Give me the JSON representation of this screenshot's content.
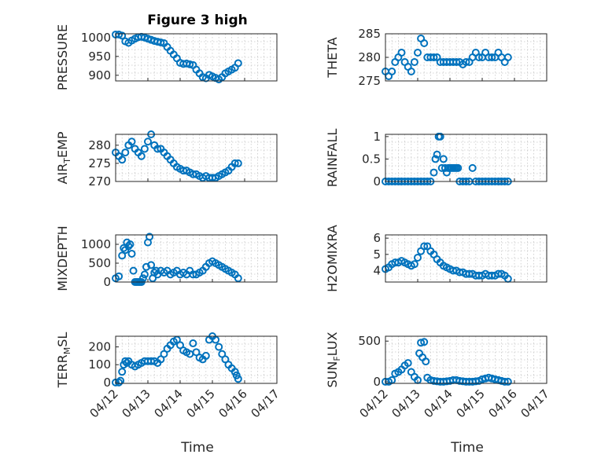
{
  "figure": {
    "title": "Figure 3 high",
    "xlabel": "Time",
    "marker_color": "#0072BD",
    "x_ticks": [
      "04/12",
      "04/13",
      "04/14",
      "04/15",
      "04/16",
      "04/17"
    ]
  },
  "chart_data": [
    {
      "type": "scatter",
      "ylabel": "PRESSURE",
      "xlim": [
        0,
        5
      ],
      "ylim": [
        885,
        1010
      ],
      "y_ticks": [
        "1000",
        "950",
        "900"
      ],
      "x": [
        0.0,
        0.1,
        0.2,
        0.3,
        0.4,
        0.5,
        0.6,
        0.7,
        0.8,
        0.9,
        1.0,
        1.1,
        1.2,
        1.3,
        1.4,
        1.5,
        1.6,
        1.7,
        1.8,
        1.9,
        2.0,
        2.1,
        2.2,
        2.3,
        2.4,
        2.5,
        2.6,
        2.7,
        2.8,
        2.9,
        3.0,
        3.1,
        3.2,
        3.3,
        3.4,
        3.5,
        3.6,
        3.7,
        3.8
      ],
      "y": [
        1008,
        1008,
        1005,
        990,
        986,
        992,
        997,
        1001,
        1002,
        1000,
        997,
        994,
        991,
        989,
        987,
        985,
        975,
        965,
        955,
        945,
        933,
        930,
        931,
        929,
        927,
        915,
        905,
        895,
        892,
        901,
        897,
        893,
        889,
        895,
        905,
        910,
        915,
        920,
        932
      ]
    },
    {
      "type": "scatter",
      "ylabel": "THETA",
      "xlim": [
        0,
        5
      ],
      "ylim": [
        275,
        285
      ],
      "y_ticks": [
        "285",
        "280",
        "275"
      ],
      "x": [
        0.0,
        0.1,
        0.2,
        0.3,
        0.4,
        0.5,
        0.6,
        0.7,
        0.8,
        0.9,
        1.0,
        1.1,
        1.2,
        1.3,
        1.4,
        1.5,
        1.6,
        1.7,
        1.8,
        1.9,
        2.0,
        2.1,
        2.2,
        2.3,
        2.4,
        2.5,
        2.6,
        2.7,
        2.8,
        2.9,
        3.0,
        3.1,
        3.2,
        3.3,
        3.4,
        3.5,
        3.6,
        3.7,
        3.8
      ],
      "y": [
        277,
        276,
        277,
        279,
        280,
        281,
        279,
        278,
        277,
        279,
        281,
        284,
        283,
        280,
        280,
        280,
        280,
        279,
        279,
        279,
        279,
        279,
        279,
        279,
        278.5,
        279,
        279,
        280,
        281,
        280,
        280,
        281,
        280,
        280,
        280,
        281,
        280,
        279,
        280
      ]
    },
    {
      "type": "scatter",
      "ylabel": "AIR_TEMP",
      "xlim": [
        0,
        5
      ],
      "ylim": [
        270,
        283
      ],
      "y_ticks": [
        "280",
        "275",
        "270"
      ],
      "x": [
        0.0,
        0.1,
        0.2,
        0.3,
        0.4,
        0.5,
        0.6,
        0.7,
        0.8,
        0.9,
        1.0,
        1.1,
        1.2,
        1.3,
        1.4,
        1.5,
        1.6,
        1.7,
        1.8,
        1.9,
        2.0,
        2.1,
        2.2,
        2.3,
        2.4,
        2.5,
        2.6,
        2.7,
        2.8,
        2.9,
        3.0,
        3.1,
        3.2,
        3.3,
        3.4,
        3.5,
        3.6,
        3.7,
        3.8
      ],
      "y": [
        278,
        277,
        276,
        278,
        280,
        281,
        279,
        278,
        277,
        279,
        281,
        283,
        280,
        279,
        279,
        278,
        277,
        276,
        275,
        274,
        273.5,
        273,
        273,
        272.5,
        272,
        272,
        271.5,
        271,
        271.5,
        271,
        271,
        271,
        271.5,
        272,
        272.5,
        273,
        274,
        275,
        275
      ]
    },
    {
      "type": "scatter",
      "ylabel": "RAINFALL",
      "xlim": [
        0,
        5
      ],
      "ylim": [
        0,
        1.05
      ],
      "y_ticks": [
        "1",
        "0.5",
        "0"
      ],
      "x": [
        0.0,
        0.1,
        0.2,
        0.3,
        0.4,
        0.5,
        0.6,
        0.7,
        0.8,
        0.9,
        1.0,
        1.1,
        1.2,
        1.3,
        1.4,
        1.5,
        1.55,
        1.6,
        1.65,
        1.7,
        1.75,
        1.8,
        1.85,
        1.9,
        1.95,
        2.0,
        2.05,
        2.1,
        2.15,
        2.2,
        2.25,
        2.3,
        2.4,
        2.5,
        2.6,
        2.7,
        2.8,
        2.9,
        3.0,
        3.1,
        3.2,
        3.3,
        3.4,
        3.5,
        3.6,
        3.7,
        3.8
      ],
      "y": [
        0,
        0,
        0,
        0,
        0,
        0,
        0,
        0,
        0,
        0,
        0,
        0,
        0,
        0,
        0,
        0.2,
        0.5,
        0.6,
        1,
        1,
        0.3,
        0.5,
        0.3,
        0.2,
        0.3,
        0.3,
        0.3,
        0.3,
        0.3,
        0.3,
        0.3,
        0,
        0,
        0,
        0,
        0.3,
        0,
        0,
        0,
        0,
        0,
        0,
        0,
        0,
        0,
        0,
        0
      ]
    },
    {
      "type": "scatter",
      "ylabel": "MIXDEPTH",
      "xlim": [
        0,
        5
      ],
      "ylim": [
        0,
        1250
      ],
      "y_ticks": [
        "1000",
        "500",
        "0"
      ],
      "x": [
        0.0,
        0.1,
        0.2,
        0.25,
        0.3,
        0.35,
        0.4,
        0.45,
        0.5,
        0.55,
        0.6,
        0.65,
        0.7,
        0.75,
        0.8,
        0.85,
        0.9,
        0.95,
        1.0,
        1.05,
        1.1,
        1.15,
        1.2,
        1.25,
        1.3,
        1.4,
        1.5,
        1.6,
        1.7,
        1.8,
        1.9,
        2.0,
        2.1,
        2.2,
        2.3,
        2.4,
        2.5,
        2.6,
        2.7,
        2.8,
        2.9,
        3.0,
        3.1,
        3.2,
        3.3,
        3.4,
        3.5,
        3.6,
        3.7,
        3.8
      ],
      "y": [
        100,
        150,
        700,
        900,
        850,
        1050,
        950,
        1000,
        750,
        300,
        0,
        0,
        0,
        0,
        0,
        100,
        200,
        400,
        1050,
        1200,
        450,
        100,
        250,
        300,
        200,
        300,
        250,
        300,
        200,
        250,
        300,
        200,
        250,
        200,
        300,
        200,
        200,
        250,
        300,
        400,
        500,
        550,
        500,
        450,
        400,
        350,
        300,
        250,
        200,
        100
      ]
    },
    {
      "type": "scatter",
      "ylabel": "H2OMIXRA",
      "xlim": [
        0,
        5
      ],
      "ylim": [
        3.3,
        6.2
      ],
      "y_ticks": [
        "6",
        "5",
        "4"
      ],
      "x": [
        0.0,
        0.1,
        0.2,
        0.3,
        0.4,
        0.5,
        0.6,
        0.7,
        0.8,
        0.9,
        1.0,
        1.1,
        1.2,
        1.3,
        1.4,
        1.5,
        1.6,
        1.7,
        1.8,
        1.9,
        2.0,
        2.1,
        2.2,
        2.3,
        2.4,
        2.5,
        2.6,
        2.7,
        2.8,
        2.9,
        3.0,
        3.1,
        3.2,
        3.3,
        3.4,
        3.5,
        3.6,
        3.7,
        3.8
      ],
      "y": [
        4.1,
        4.2,
        4.4,
        4.5,
        4.5,
        4.6,
        4.5,
        4.4,
        4.3,
        4.4,
        4.8,
        5.2,
        5.5,
        5.5,
        5.2,
        5.0,
        4.7,
        4.5,
        4.3,
        4.2,
        4.1,
        4.0,
        4.0,
        3.9,
        3.9,
        3.8,
        3.8,
        3.8,
        3.7,
        3.7,
        3.7,
        3.8,
        3.7,
        3.7,
        3.7,
        3.8,
        3.8,
        3.7,
        3.5
      ]
    },
    {
      "type": "scatter",
      "ylabel": "TERR_MSL",
      "xlim": [
        0,
        5
      ],
      "ylim": [
        -5,
        260
      ],
      "y_ticks": [
        "200",
        "100",
        "0"
      ],
      "x": [
        0.0,
        0.1,
        0.15,
        0.2,
        0.25,
        0.3,
        0.35,
        0.4,
        0.5,
        0.6,
        0.7,
        0.8,
        0.9,
        1.0,
        1.1,
        1.2,
        1.3,
        1.4,
        1.5,
        1.6,
        1.7,
        1.8,
        1.9,
        2.0,
        2.1,
        2.2,
        2.3,
        2.4,
        2.5,
        2.6,
        2.7,
        2.8,
        2.9,
        3.0,
        3.1,
        3.2,
        3.3,
        3.4,
        3.5,
        3.6,
        3.7,
        3.75,
        3.8
      ],
      "y": [
        0,
        0,
        10,
        60,
        100,
        120,
        110,
        120,
        100,
        90,
        100,
        110,
        120,
        120,
        120,
        120,
        110,
        130,
        160,
        190,
        210,
        230,
        240,
        210,
        180,
        170,
        160,
        220,
        170,
        140,
        130,
        150,
        240,
        260,
        240,
        200,
        160,
        130,
        100,
        80,
        60,
        40,
        20
      ]
    },
    {
      "type": "scatter",
      "ylabel": "SUN_FLUX",
      "xlim": [
        0,
        5
      ],
      "ylim": [
        -20,
        560
      ],
      "y_ticks": [
        "500",
        "0"
      ],
      "x": [
        0.0,
        0.1,
        0.2,
        0.3,
        0.4,
        0.5,
        0.6,
        0.7,
        0.8,
        0.9,
        1.0,
        1.05,
        1.1,
        1.15,
        1.2,
        1.25,
        1.3,
        1.4,
        1.5,
        1.6,
        1.7,
        1.8,
        1.9,
        2.0,
        2.1,
        2.2,
        2.3,
        2.4,
        2.5,
        2.6,
        2.7,
        2.8,
        2.9,
        3.0,
        3.1,
        3.2,
        3.3,
        3.4,
        3.5,
        3.6,
        3.7,
        3.8
      ],
      "y": [
        0,
        0,
        20,
        100,
        120,
        150,
        200,
        230,
        120,
        60,
        20,
        350,
        480,
        300,
        490,
        250,
        50,
        20,
        10,
        5,
        0,
        0,
        5,
        10,
        20,
        20,
        10,
        5,
        0,
        0,
        0,
        5,
        10,
        30,
        40,
        50,
        40,
        30,
        20,
        10,
        0,
        0
      ]
    }
  ]
}
